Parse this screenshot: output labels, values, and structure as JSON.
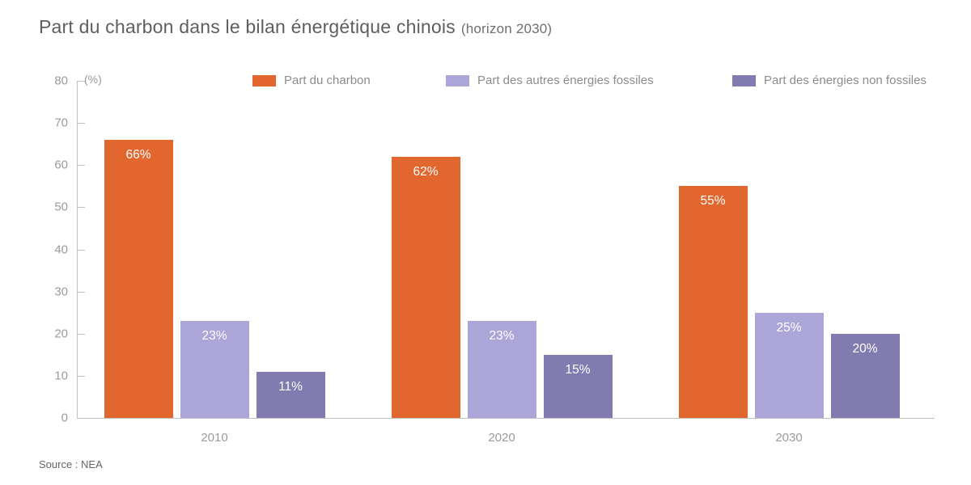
{
  "title": {
    "main": "Part du charbon dans le bilan énergétique chinois",
    "suffix": "(horizon 2030)"
  },
  "source": "Source : NEA",
  "colors": {
    "coal": "#e2672e",
    "other_fossils": "#aca5d8",
    "non_fossils": "#817bb0",
    "axis": "#bfbfbf",
    "tick_text": "#9b9b9b",
    "value_label_text": "#ffffff"
  },
  "chart_data": {
    "type": "bar",
    "title": "Part du charbon dans le bilan énergétique chinois (horizon 2030)",
    "categories": [
      "2010",
      "2020",
      "2030"
    ],
    "series": [
      {
        "name": "Part du charbon",
        "values": [
          66,
          62,
          55
        ],
        "color": "#e2672e"
      },
      {
        "name": "Part des autres énergies fossiles",
        "values": [
          23,
          23,
          25
        ],
        "color": "#aca5d8"
      },
      {
        "name": "Part des énergies non fossiles",
        "values": [
          11,
          15,
          20
        ],
        "color": "#817bb0"
      }
    ],
    "value_label_format": "{v}%",
    "xlabel": "",
    "ylabel": "(%)",
    "ylim": [
      0,
      80
    ],
    "ytick_step": 10,
    "grid": false,
    "legend_position": "top"
  }
}
